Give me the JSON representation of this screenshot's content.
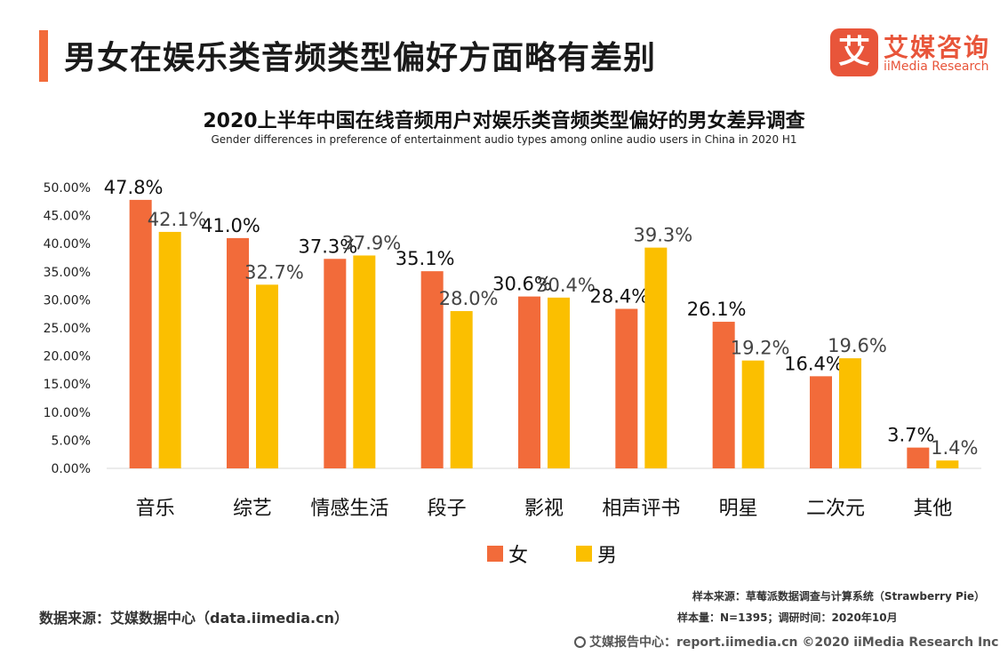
{
  "header": {
    "title": "男女在娱乐类音频类型偏好方面略有差别",
    "accent_color": "#f26b3a"
  },
  "logo": {
    "mark": "艾",
    "name_cn": "艾媒咨询",
    "name_en": "iiMedia Research",
    "color": "#e8553a"
  },
  "chart_data": {
    "type": "bar",
    "title": "2020上半年中国在线音频用户对娱乐类音频类型偏好的男女差异调查",
    "subtitle": "Gender differences in preference of entertainment audio types among online audio users in China  in 2020 H1",
    "categories": [
      "音乐",
      "综艺",
      "情感生活",
      "段子",
      "影视",
      "相声评书",
      "明星",
      "二次元",
      "其他"
    ],
    "series": [
      {
        "name": "女",
        "color": "#f26b3a",
        "values": [
          47.8,
          41.0,
          37.3,
          35.1,
          30.6,
          28.4,
          26.1,
          16.4,
          3.7
        ]
      },
      {
        "name": "男",
        "color": "#fbbf00",
        "values": [
          42.1,
          32.7,
          37.9,
          28.0,
          30.4,
          39.3,
          19.2,
          19.6,
          1.4
        ]
      }
    ],
    "ylim": [
      0,
      50
    ],
    "yticks": [
      "0.00%",
      "5.00%",
      "10.00%",
      "15.00%",
      "20.00%",
      "25.00%",
      "30.00%",
      "35.00%",
      "40.00%",
      "45.00%",
      "50.00%"
    ],
    "data_labels": [
      [
        "47.8%",
        "41.0%",
        "37.3%",
        "35.1%",
        "30.6%",
        "28.4%",
        "26.1%",
        "16.4%",
        "3.7%"
      ],
      [
        "42.1%",
        "32.7%",
        "37.9%",
        "28.0%",
        "30.4%",
        "39.3%",
        "19.2%",
        "19.6%",
        "1.4%"
      ]
    ],
    "grid": false,
    "legend": "bottom-center"
  },
  "footer": {
    "data_source": "数据来源：艾媒数据中心（data.iimedia.cn）",
    "sample_source": "样本来源：草莓派数据调查与计算系统（Strawberry Pie）",
    "sample_size": "样本量：N=1395；调研时间：2020年10月",
    "report_center": "艾媒报告中心：report.iimedia.cn  ©2020  iiMedia Research  Inc"
  }
}
